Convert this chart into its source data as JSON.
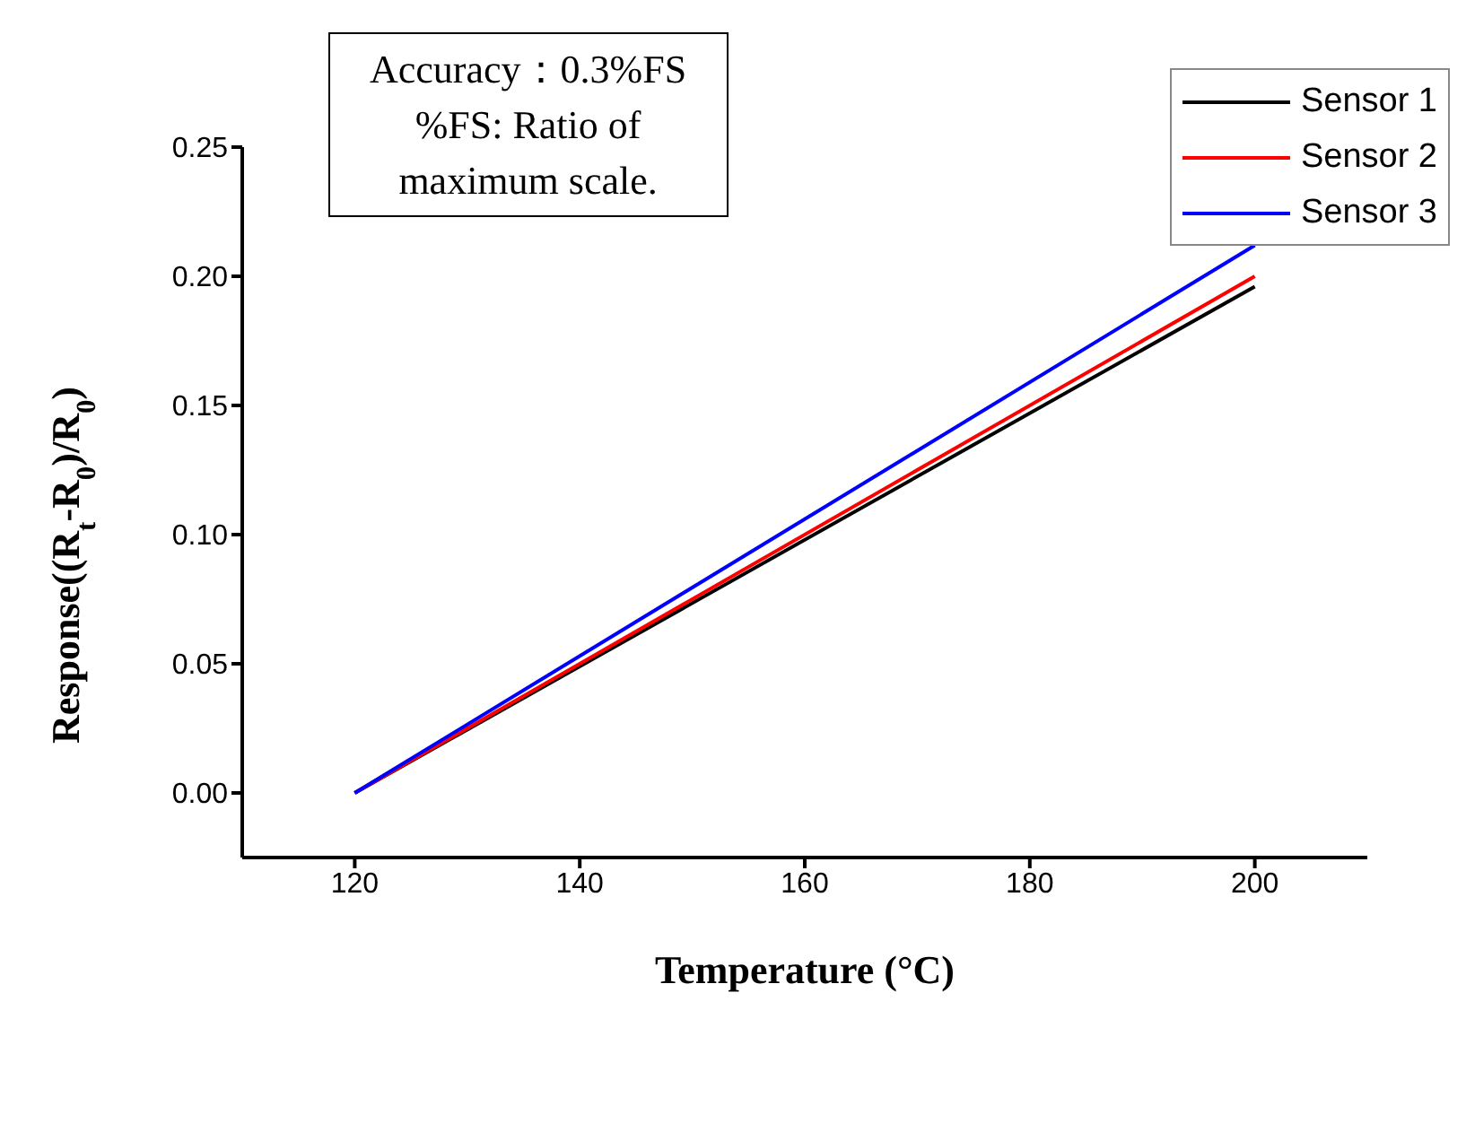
{
  "chart_data": {
    "type": "line",
    "xlabel": "Temperature (°C)",
    "ylabel": "Response((R$_{t}$-R$_{0}$)/R$_{0}$)",
    "annotations": [
      "Accuracy：0.3%FS\n%FS: Ratio of\nmaximum scale."
    ],
    "x": [
      120,
      200
    ],
    "series": [
      {
        "name": "Sensor 1",
        "color": "#000000",
        "values": [
          0,
          0.196
        ]
      },
      {
        "name": "Sensor 2",
        "color": "#ff0000",
        "values": [
          0,
          0.2
        ]
      },
      {
        "name": "Sensor 3",
        "color": "#0000ff",
        "values": [
          0,
          0.212
        ]
      }
    ],
    "xlim": [
      110,
      210
    ],
    "xticks": [
      120,
      140,
      160,
      180,
      200
    ],
    "ylim": [
      -0.025,
      0.25
    ],
    "yticks": [
      {
        "value": 0,
        "label": "0.00"
      },
      0.05,
      {
        "value": 0.1,
        "label": "0.10"
      },
      0.15,
      {
        "value": 0.2,
        "label": "0.20"
      },
      0.25
    ],
    "grid": false,
    "legend": "top right",
    "marker": "none",
    "line_style": "solid"
  }
}
